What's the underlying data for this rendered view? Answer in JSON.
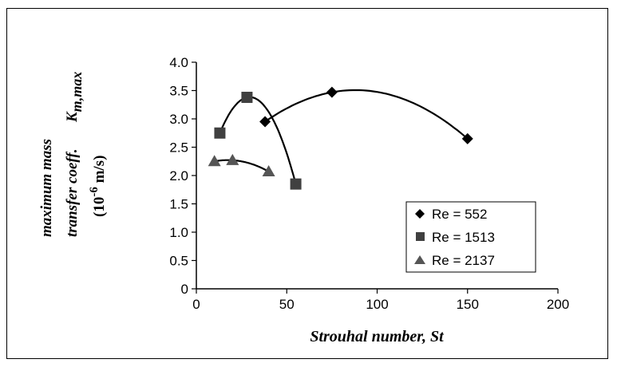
{
  "chart_data": {
    "type": "scatter",
    "xlabel": "Strouhal number, St",
    "ylabel_lines": [
      "maximum mass",
      "transfer coeff."
    ],
    "ylabel_symbol": "K",
    "ylabel_subscript": "m,max",
    "ylabel_unit_prefix": "(10",
    "ylabel_unit_exp": "-6",
    "ylabel_unit_suffix": " m/s)",
    "xlim": [
      0,
      200
    ],
    "ylim": [
      0,
      4.0
    ],
    "x_ticks": [
      "0",
      "50",
      "100",
      "150",
      "200"
    ],
    "y_ticks": [
      "0",
      "0.5",
      "1.0",
      "1.5",
      "2.0",
      "2.5",
      "3.0",
      "3.5",
      "4.0"
    ],
    "grid": false,
    "legend_position": "bottom-right",
    "series": [
      {
        "name": "Re = 552",
        "marker": "diamond",
        "x": [
          38,
          75,
          150
        ],
        "y": [
          2.95,
          3.47,
          2.65
        ]
      },
      {
        "name": "Re = 1513",
        "marker": "square",
        "x": [
          13,
          28,
          55
        ],
        "y": [
          2.75,
          3.38,
          1.85
        ]
      },
      {
        "name": "Re = 2137",
        "marker": "triangle",
        "x": [
          10,
          20,
          40
        ],
        "y": [
          2.25,
          2.27,
          2.07
        ]
      }
    ]
  }
}
